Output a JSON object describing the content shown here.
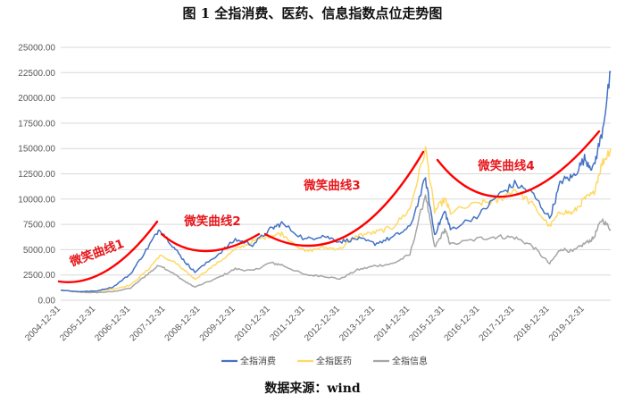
{
  "title": "图 1  全指消费、医药、信息指数点位走势图",
  "source": "数据来源：wind",
  "chart_data": {
    "type": "line",
    "title": "图 1  全指消费、医药、信息指数点位走势图",
    "xlabel": "",
    "ylabel": "",
    "x_range": [
      "2004-12-31",
      "2020-09-30"
    ],
    "ylim": [
      0,
      25000
    ],
    "y_ticks": [
      "0.00",
      "2500.00",
      "5000.00",
      "7500.00",
      "10000.00",
      "12500.00",
      "15000.00",
      "17500.00",
      "20000.00",
      "22500.00",
      "25000.00"
    ],
    "x_ticks": [
      "2004-12-31",
      "2005-12-31",
      "2006-12-31",
      "2007-12-31",
      "2008-12-31",
      "2009-12-31",
      "2010-12-31",
      "2011-12-31",
      "2012-12-31",
      "2013-12-31",
      "2014-12-31",
      "2015-12-31",
      "2016-12-31",
      "2017-12-31",
      "2018-12-31",
      "2019-12-31"
    ],
    "grid": "horizontal",
    "legend_position": "bottom",
    "series": [
      {
        "name": "全指消费",
        "color": "#4472c4",
        "x": [
          "2004-12-31",
          "2005-06-30",
          "2005-12-31",
          "2006-06-30",
          "2006-12-31",
          "2007-06-30",
          "2007-10-31",
          "2008-03-31",
          "2008-07-31",
          "2008-11-04",
          "2009-06-30",
          "2009-12-31",
          "2010-06-30",
          "2010-12-31",
          "2011-04-30",
          "2011-12-31",
          "2012-06-30",
          "2012-12-31",
          "2013-06-30",
          "2013-12-31",
          "2014-06-30",
          "2014-12-31",
          "2015-06-12",
          "2015-09-15",
          "2015-12-31",
          "2016-02-28",
          "2016-12-31",
          "2017-06-30",
          "2017-12-31",
          "2018-06-30",
          "2018-12-31",
          "2019-04-30",
          "2019-08-31",
          "2019-12-31",
          "2020-03-31",
          "2020-06-30",
          "2020-09-30"
        ],
        "y": [
          1000,
          850,
          900,
          1300,
          2600,
          5200,
          7100,
          5200,
          3700,
          2800,
          4500,
          6000,
          5500,
          7000,
          7600,
          6000,
          6400,
          5800,
          6100,
          5600,
          6200,
          7200,
          12000,
          6500,
          8800,
          7000,
          8500,
          10300,
          11500,
          10600,
          8100,
          11800,
          12200,
          14000,
          13000,
          16500,
          22500
        ]
      },
      {
        "name": "全指医药",
        "color": "#ffd966",
        "x": [
          "2004-12-31",
          "2005-06-30",
          "2005-12-31",
          "2006-06-30",
          "2006-12-31",
          "2007-06-30",
          "2007-10-31",
          "2008-03-31",
          "2008-07-31",
          "2008-11-04",
          "2009-06-30",
          "2009-12-31",
          "2010-06-30",
          "2010-12-31",
          "2011-04-30",
          "2011-12-31",
          "2012-06-30",
          "2012-12-31",
          "2013-06-30",
          "2013-12-31",
          "2014-06-30",
          "2014-12-31",
          "2015-06-12",
          "2015-09-15",
          "2015-12-31",
          "2016-02-28",
          "2016-12-31",
          "2017-06-30",
          "2017-12-31",
          "2018-06-30",
          "2018-12-31",
          "2019-04-30",
          "2019-08-31",
          "2019-12-31",
          "2020-03-31",
          "2020-06-30",
          "2020-09-30"
        ],
        "y": [
          1000,
          850,
          900,
          1100,
          1500,
          3000,
          4400,
          3800,
          2800,
          2100,
          3700,
          5000,
          5800,
          6400,
          6600,
          4800,
          5200,
          5100,
          6400,
          6700,
          7200,
          9000,
          15000,
          8800,
          10000,
          8700,
          9600,
          9800,
          11000,
          9500,
          7300,
          8800,
          8600,
          10000,
          10500,
          13500,
          15000
        ]
      },
      {
        "name": "全指信息",
        "color": "#a5a5a5",
        "x": [
          "2004-12-31",
          "2005-06-30",
          "2005-12-31",
          "2006-06-30",
          "2006-12-31",
          "2007-06-30",
          "2007-10-31",
          "2008-03-31",
          "2008-07-31",
          "2008-11-04",
          "2009-06-30",
          "2009-12-31",
          "2010-06-30",
          "2010-12-31",
          "2011-04-30",
          "2011-12-31",
          "2012-06-30",
          "2012-12-31",
          "2013-06-30",
          "2013-12-31",
          "2014-06-30",
          "2014-12-31",
          "2015-06-12",
          "2015-09-15",
          "2015-12-31",
          "2016-02-28",
          "2016-12-31",
          "2017-06-30",
          "2017-12-31",
          "2018-06-30",
          "2018-12-31",
          "2019-04-30",
          "2019-08-31",
          "2019-12-31",
          "2020-03-31",
          "2020-06-30",
          "2020-09-30"
        ],
        "y": [
          1000,
          800,
          750,
          850,
          1200,
          2600,
          3500,
          2600,
          1800,
          1300,
          2200,
          3100,
          2900,
          3700,
          3500,
          2500,
          2400,
          2100,
          3000,
          3400,
          3600,
          4500,
          10500,
          5200,
          7000,
          5500,
          6100,
          6300,
          6200,
          5400,
          3600,
          5100,
          4800,
          5600,
          6100,
          8000,
          7000
        ]
      }
    ],
    "annotations": [
      {
        "text": "微笑曲线1",
        "color": "#ff0000"
      },
      {
        "text": "微笑曲线2",
        "color": "#ff0000"
      },
      {
        "text": "微笑曲线3",
        "color": "#ff0000"
      },
      {
        "text": "微笑曲线4",
        "color": "#ff0000"
      }
    ]
  }
}
